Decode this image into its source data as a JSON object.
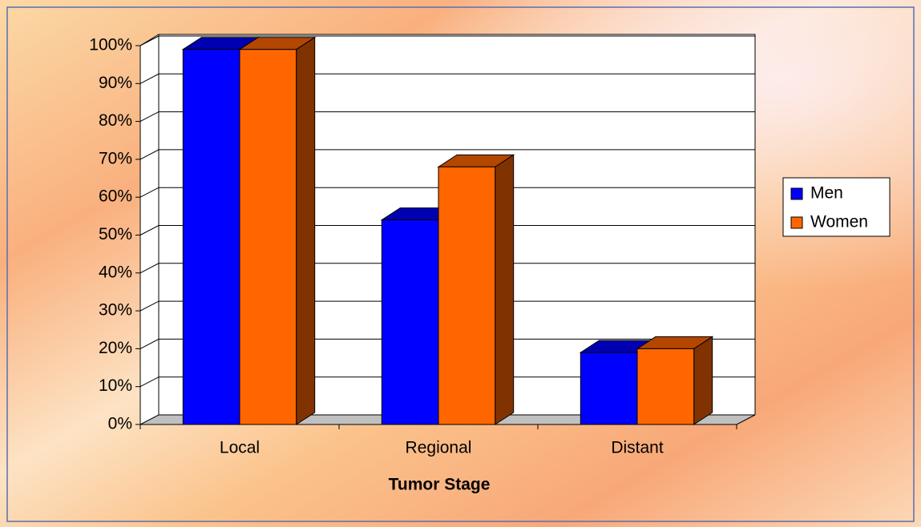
{
  "chart_data": {
    "type": "bar3d",
    "x_label": "Tumor Stage",
    "categories": [
      "Local",
      "Regional",
      "Distant"
    ],
    "series": [
      {
        "name": "Men",
        "color": "#0000ff",
        "values": [
          99,
          54,
          19
        ]
      },
      {
        "name": "Women",
        "color": "#ff6600",
        "values": [
          99,
          68,
          20
        ]
      }
    ],
    "ylim": [
      0,
      100
    ],
    "yticks": [
      {
        "value": 0,
        "label": "0%"
      },
      {
        "value": 10,
        "label": "10%"
      },
      {
        "value": 20,
        "label": "20%"
      },
      {
        "value": 30,
        "label": "30%"
      },
      {
        "value": 40,
        "label": "40%"
      },
      {
        "value": 50,
        "label": "50%"
      },
      {
        "value": 60,
        "label": "60%"
      },
      {
        "value": 70,
        "label": "70%"
      },
      {
        "value": 80,
        "label": "80%"
      },
      {
        "value": 90,
        "label": "90%"
      },
      {
        "value": 100,
        "label": "100%"
      }
    ],
    "grid": true,
    "legend": "right"
  }
}
